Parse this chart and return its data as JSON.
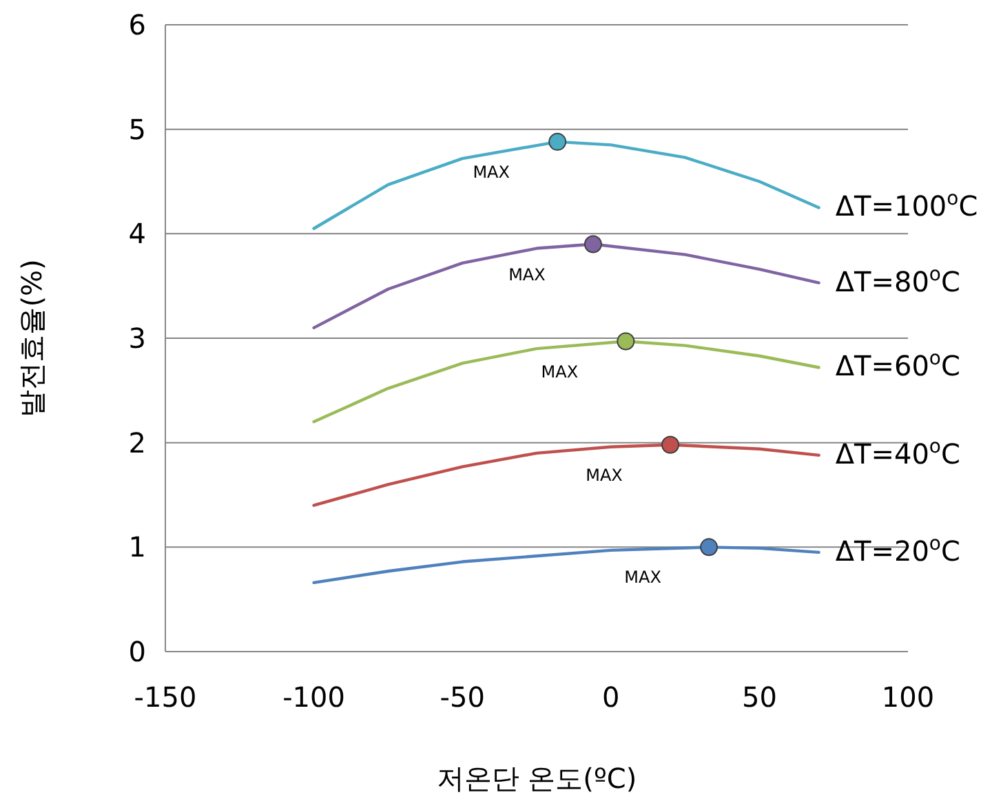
{
  "chart_data": {
    "type": "line",
    "xlabel": "저온단 온도(ºC)",
    "ylabel": "발전효율(%)",
    "xlim": [
      -150,
      100
    ],
    "xticks": [
      -150,
      -100,
      -50,
      0,
      50,
      100
    ],
    "ylim": [
      0,
      6
    ],
    "yticks": [
      0,
      1,
      2,
      3,
      4,
      5,
      6
    ],
    "grid": "y",
    "legend": false,
    "series": [
      {
        "name": "ΔT=100$^{o}$C",
        "color": "#4bacc6",
        "x": [
          -100,
          -75,
          -50,
          -18,
          0,
          25,
          50,
          70
        ],
        "values": [
          4.05,
          4.47,
          4.72,
          4.88,
          4.85,
          4.73,
          4.5,
          4.25
        ]
      },
      {
        "name": "ΔT=80$^{o}$C",
        "color": "#8064a2",
        "x": [
          -100,
          -75,
          -50,
          -25,
          -6,
          25,
          50,
          70
        ],
        "values": [
          3.1,
          3.47,
          3.72,
          3.86,
          3.9,
          3.8,
          3.66,
          3.53
        ]
      },
      {
        "name": "ΔT=60$^{o}$C",
        "color": "#9bbb59",
        "x": [
          -100,
          -75,
          -50,
          -25,
          5,
          25,
          50,
          70
        ],
        "values": [
          2.2,
          2.52,
          2.76,
          2.9,
          2.97,
          2.93,
          2.83,
          2.72
        ]
      },
      {
        "name": "ΔT=40$^{o}$C",
        "color": "#c0504d",
        "x": [
          -100,
          -75,
          -50,
          -25,
          0,
          20,
          50,
          70
        ],
        "values": [
          1.4,
          1.6,
          1.77,
          1.9,
          1.96,
          1.98,
          1.94,
          1.88
        ]
      },
      {
        "name": "ΔT=20$^{o}$C",
        "color": "#4f81bd",
        "x": [
          -100,
          -75,
          -50,
          0,
          33,
          50,
          70
        ],
        "values": [
          0.66,
          0.77,
          0.86,
          0.97,
          1.0,
          0.99,
          0.95
        ]
      },
      {
        "type": "scatter",
        "marker": "circle",
        "x": [
          -18,
          -6,
          5,
          20,
          33
        ],
        "values": [
          4.88,
          3.9,
          2.97,
          1.98,
          1.0
        ],
        "colors": [
          "#4bacc6",
          "#8064a2",
          "#9bbb59",
          "#c0504d",
          "#4f81bd"
        ]
      }
    ],
    "annotations": [
      "MAX",
      "MAX",
      "MAX",
      "MAX",
      "MAX"
    ]
  }
}
